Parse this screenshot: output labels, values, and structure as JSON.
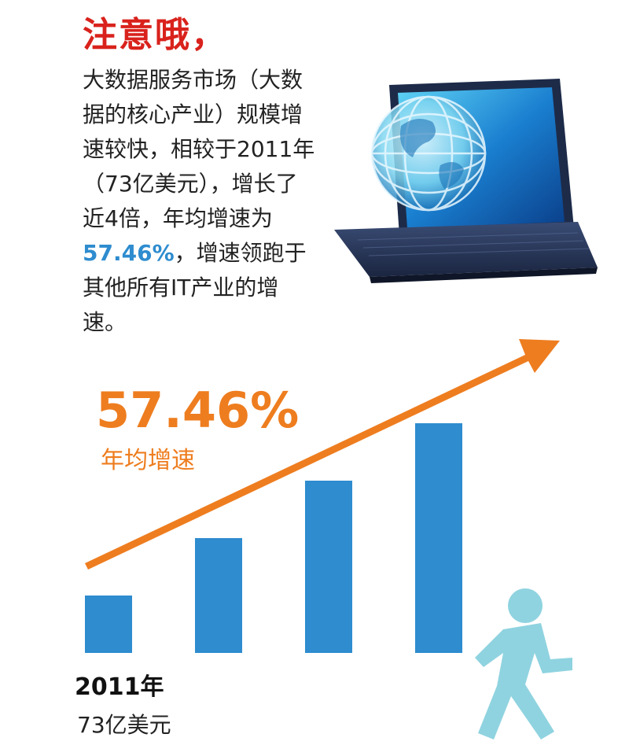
{
  "headline": "注意哦，",
  "body_text": {
    "before": "大数据服务市场（大数据的核心产业）规模增速较快，相较于2011年（73亿美元），增长了近4倍，年均增速为",
    "highlight": "57.46%",
    "after": "，增速领跑于其他所有IT产业的增速。"
  },
  "chart_data": {
    "type": "bar",
    "categories": [
      "2011年",
      "",
      "",
      ""
    ],
    "values": [
      73,
      146,
      219,
      292
    ],
    "ylim": [
      0,
      300
    ],
    "bar_color": "#2e8ccf",
    "annotation": {
      "value": "57.46%",
      "label": "年均增速",
      "color": "#ee7d1f"
    },
    "first_bar_label": "2011年",
    "first_bar_value_label": "73亿美元"
  },
  "colors": {
    "headline": "#d9221c",
    "highlight": "#2e8ccf",
    "accent": "#ee7d1f",
    "runner": "#8fd3e0"
  },
  "icons": {
    "laptop": "laptop-globe-icon",
    "runner": "running-person-icon"
  }
}
